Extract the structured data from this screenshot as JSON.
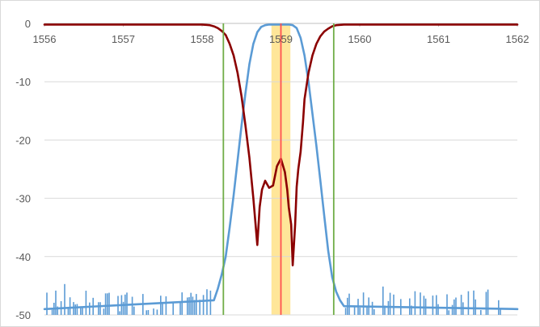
{
  "chart_data": {
    "type": "line",
    "title": "",
    "xlabel": "",
    "ylabel": "",
    "xlim": [
      1556,
      1562
    ],
    "ylim": [
      -50,
      0
    ],
    "x_ticks": [
      1556,
      1557,
      1558,
      1559,
      1560,
      1561,
      1562
    ],
    "y_ticks": [
      0,
      -10,
      -20,
      -30,
      -40,
      -50
    ],
    "x_axis_position": "top",
    "grid": {
      "horizontal": true,
      "vertical": false
    },
    "legend": "none",
    "highlight_band": {
      "x_from": 1558.88,
      "x_to": 1559.12,
      "color": "#ffe699"
    },
    "markers": [
      {
        "x": 1558.27,
        "color": "#70ad47"
      },
      {
        "x": 1559.0,
        "color": "#ff5050"
      },
      {
        "x": 1559.67,
        "color": "#70ad47"
      }
    ],
    "series": [
      {
        "color": "#5b9bd5",
        "noise_floor": -48.5,
        "x": [
          1556.0,
          1558.15,
          1558.2,
          1558.25,
          1558.3,
          1558.35,
          1558.4,
          1558.45,
          1558.5,
          1558.55,
          1558.6,
          1558.65,
          1558.7,
          1558.75,
          1558.8,
          1558.85,
          1558.9,
          1559.1,
          1559.15,
          1559.2,
          1559.25,
          1559.3,
          1559.35,
          1559.4,
          1559.45,
          1559.5,
          1559.55,
          1559.6,
          1559.65,
          1559.7,
          1559.75,
          1559.8,
          1562.0
        ],
        "values": [
          -49,
          -47.5,
          -45.5,
          -43,
          -40,
          -35,
          -29.5,
          -23.5,
          -17.5,
          -12,
          -7,
          -3.5,
          -1.5,
          -0.6,
          -0.3,
          -0.2,
          -0.2,
          -0.2,
          -0.3,
          -0.8,
          -2.5,
          -5.5,
          -10,
          -15.5,
          -21,
          -27,
          -33,
          -39,
          -43.5,
          -46,
          -47.5,
          -48.5,
          -49
        ]
      },
      {
        "color": "#8b0000",
        "x": [
          1556.0,
          1558.0,
          1558.1,
          1558.15,
          1558.2,
          1558.25,
          1558.3,
          1558.35,
          1558.4,
          1558.45,
          1558.5,
          1558.55,
          1558.6,
          1558.65,
          1558.7,
          1558.73,
          1558.76,
          1558.8,
          1558.85,
          1558.9,
          1558.95,
          1559.0,
          1559.05,
          1559.08,
          1559.1,
          1559.13,
          1559.15,
          1559.18,
          1559.2,
          1559.22,
          1559.25,
          1559.28,
          1559.3,
          1559.35,
          1559.4,
          1559.45,
          1559.5,
          1559.55,
          1559.6,
          1559.65,
          1559.7,
          1559.8,
          1562.0
        ],
        "values": [
          -0.2,
          -0.2,
          -0.3,
          -0.5,
          -0.8,
          -1.3,
          -2,
          -3.5,
          -5.5,
          -8.5,
          -12.5,
          -17.5,
          -23,
          -30,
          -38,
          -31.5,
          -28.5,
          -27,
          -28.2,
          -27.8,
          -24.5,
          -23.2,
          -25.5,
          -28.5,
          -31.5,
          -34.5,
          -41.5,
          -34.5,
          -28,
          -25,
          -22,
          -17,
          -13,
          -8.5,
          -5.5,
          -3.5,
          -2.2,
          -1.4,
          -0.9,
          -0.5,
          -0.3,
          -0.2,
          -0.2
        ]
      }
    ]
  }
}
